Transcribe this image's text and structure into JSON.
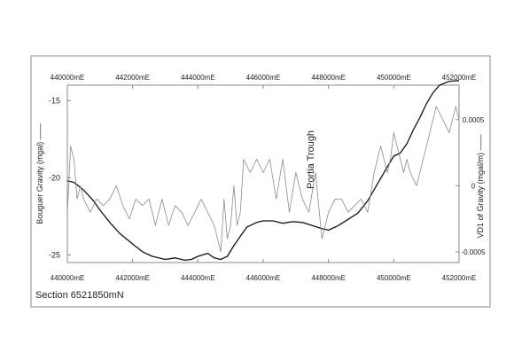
{
  "chart_data": {
    "type": "line",
    "title": "",
    "caption": "Section 6521850mN",
    "annotation": "Portia Trough",
    "xlabel": "",
    "x_ticks": [
      "440000mE",
      "442000mE",
      "444000mE",
      "446000mE",
      "448000mE",
      "450000mE",
      "452000mE"
    ],
    "x_tick_values": [
      440000,
      442000,
      444000,
      446000,
      448000,
      450000,
      452000
    ],
    "xlim": [
      440000,
      452000
    ],
    "left_axis": {
      "label": "Bouguer Gravity (mgal) ——",
      "ticks": [
        "-15",
        "-20",
        "-25"
      ],
      "tick_values": [
        -15,
        -20,
        -25
      ],
      "ylim": [
        -25.5,
        -14
      ]
    },
    "right_axis": {
      "label": "VD1 of Gravity (mgal/m) ——",
      "ticks": [
        "0.0005",
        "0",
        "-0.0005"
      ],
      "tick_values": [
        0.0005,
        0,
        -0.0005
      ],
      "ylim": [
        -0.00058,
        0.00076
      ]
    },
    "grid": false,
    "colors": {
      "bouguer": "#111111",
      "vd1": "#8a8a8a",
      "frame": "#888888"
    },
    "series": [
      {
        "name": "Bouguer Gravity",
        "axis": "left",
        "x": [
          440000,
          440200,
          440500,
          440800,
          441000,
          441300,
          441600,
          442000,
          442300,
          442600,
          443000,
          443300,
          443600,
          443800,
          444000,
          444300,
          444500,
          444700,
          444900,
          445100,
          445300,
          445500,
          445800,
          446000,
          446300,
          446600,
          446900,
          447200,
          447500,
          447800,
          448000,
          448300,
          448600,
          448900,
          449200,
          449500,
          449800,
          450000,
          450200,
          450400,
          450600,
          450800,
          451000,
          451200,
          451400,
          451700,
          452000
        ],
        "values": [
          -20.2,
          -20.3,
          -20.8,
          -21.5,
          -22.1,
          -22.9,
          -23.6,
          -24.3,
          -24.8,
          -25.1,
          -25.3,
          -25.2,
          -25.35,
          -25.3,
          -25.1,
          -24.9,
          -25.2,
          -25.3,
          -25.1,
          -24.4,
          -23.8,
          -23.2,
          -22.9,
          -22.8,
          -22.8,
          -22.95,
          -22.85,
          -22.9,
          -23.1,
          -23.3,
          -23.4,
          -23.1,
          -22.7,
          -22.3,
          -21.5,
          -20.4,
          -19.3,
          -18.6,
          -18.4,
          -17.8,
          -16.9,
          -16.1,
          -15.2,
          -14.5,
          -14.0,
          -13.75,
          -13.7
        ]
      },
      {
        "name": "VD1 of Gravity",
        "axis": "right",
        "x": [
          440000,
          440100,
          440200,
          440300,
          440400,
          440500,
          440700,
          440900,
          441100,
          441300,
          441500,
          441700,
          441900,
          442100,
          442300,
          442500,
          442700,
          442900,
          443100,
          443300,
          443500,
          443700,
          443900,
          444100,
          444300,
          444500,
          444700,
          444800,
          444900,
          445000,
          445100,
          445200,
          445300,
          445400,
          445600,
          445800,
          446000,
          446200,
          446400,
          446600,
          446800,
          447000,
          447200,
          447400,
          447600,
          447800,
          448000,
          448200,
          448400,
          448600,
          448800,
          449000,
          449200,
          449400,
          449600,
          449700,
          449800,
          449900,
          450000,
          450100,
          450200,
          450300,
          450400,
          450500,
          450700,
          450900,
          451100,
          451300,
          451500,
          451700,
          451900,
          452000
        ],
        "values": [
          -0.0002,
          0.0003,
          0.0002,
          -0.0001,
          0.0,
          -0.0001,
          -0.0002,
          -0.0001,
          -0.00015,
          -0.0001,
          0.0,
          -0.00015,
          -0.00025,
          -0.0001,
          -0.00015,
          -0.0001,
          -0.0003,
          -0.0001,
          -0.0003,
          -0.00015,
          -0.0002,
          -0.0003,
          -0.0002,
          -0.0001,
          -0.0002,
          -0.0003,
          -0.0005,
          -0.0001,
          -0.0004,
          -0.0003,
          0.0,
          -0.0003,
          -0.0002,
          0.0002,
          0.0001,
          0.0002,
          0.0001,
          0.0002,
          -0.0001,
          0.0002,
          -0.0002,
          0.0001,
          -0.0001,
          -0.0002,
          0.0001,
          -0.0004,
          -0.0002,
          -0.0001,
          -0.0001,
          -0.0002,
          -0.00015,
          -0.0001,
          -0.0002,
          0.0001,
          0.0003,
          0.0002,
          0.0001,
          0.0002,
          0.0004,
          0.0003,
          0.0002,
          0.0001,
          0.0002,
          0.0001,
          0.0,
          0.0002,
          0.0004,
          0.0006,
          0.0005,
          0.0004,
          0.0006,
          0.0005
        ]
      }
    ]
  }
}
